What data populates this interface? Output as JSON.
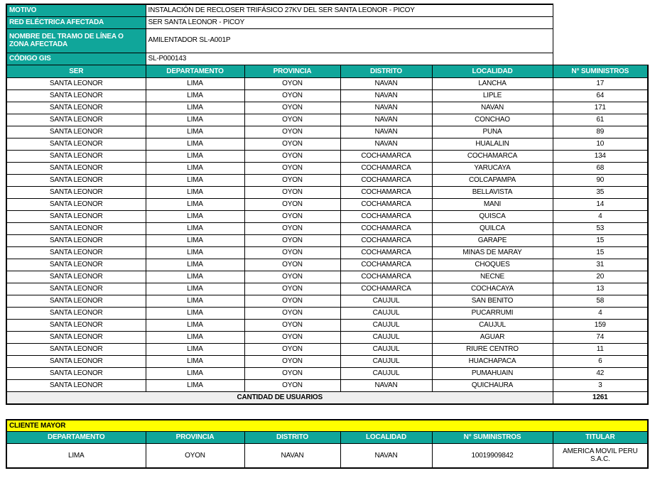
{
  "colors": {
    "header_teal": "#10a69a",
    "cliente_mayor_yellow": "#ffff00",
    "total_row_gray": "#efefef",
    "border_black": "#000000"
  },
  "info": {
    "rows": [
      {
        "label": "MOTIVO",
        "value": "INSTALACIÓN DE RECLOSER TRIFÁSICO 27KV DEL SER SANTA LEONOR - PICOY"
      },
      {
        "label": "RED ELÉCTRICA AFECTADA",
        "value": "SER SANTA LEONOR - PICOY"
      },
      {
        "label": "NOMBRE DEL TRAMO DE LÍNEA O ZONA AFECTADA",
        "value": "AMILENTADOR SL-A001P"
      },
      {
        "label": "CÓDIGO GIS",
        "value": "SL-P000143"
      }
    ]
  },
  "main_table": {
    "headers": [
      "SER",
      "DEPARTAMENTO",
      "PROVINCIA",
      "DISTRITO",
      "LOCALIDAD",
      "N° SUMINISTROS"
    ],
    "rows": [
      [
        "SANTA LEONOR",
        "LIMA",
        "OYON",
        "NAVAN",
        "LANCHA",
        "17"
      ],
      [
        "SANTA LEONOR",
        "LIMA",
        "OYON",
        "NAVAN",
        "LIPLE",
        "64"
      ],
      [
        "SANTA LEONOR",
        "LIMA",
        "OYON",
        "NAVAN",
        "NAVAN",
        "171"
      ],
      [
        "SANTA LEONOR",
        "LIMA",
        "OYON",
        "NAVAN",
        "CONCHAO",
        "61"
      ],
      [
        "SANTA LEONOR",
        "LIMA",
        "OYON",
        "NAVAN",
        "PUNA",
        "89"
      ],
      [
        "SANTA LEONOR",
        "LIMA",
        "OYON",
        "NAVAN",
        "HUALALIN",
        "10"
      ],
      [
        "SANTA LEONOR",
        "LIMA",
        "OYON",
        "COCHAMARCA",
        "COCHAMARCA",
        "134"
      ],
      [
        "SANTA LEONOR",
        "LIMA",
        "OYON",
        "COCHAMARCA",
        "YARUCAYA",
        "68"
      ],
      [
        "SANTA LEONOR",
        "LIMA",
        "OYON",
        "COCHAMARCA",
        "COLCAPAMPA",
        "90"
      ],
      [
        "SANTA LEONOR",
        "LIMA",
        "OYON",
        "COCHAMARCA",
        "BELLAVISTA",
        "35"
      ],
      [
        "SANTA LEONOR",
        "LIMA",
        "OYON",
        "COCHAMARCA",
        "MANI",
        "14"
      ],
      [
        "SANTA LEONOR",
        "LIMA",
        "OYON",
        "COCHAMARCA",
        "QUISCA",
        "4"
      ],
      [
        "SANTA LEONOR",
        "LIMA",
        "OYON",
        "COCHAMARCA",
        "QUILCA",
        "53"
      ],
      [
        "SANTA LEONOR",
        "LIMA",
        "OYON",
        "COCHAMARCA",
        "GARAPE",
        "15"
      ],
      [
        "SANTA LEONOR",
        "LIMA",
        "OYON",
        "COCHAMARCA",
        "MINAS DE MARAY",
        "15"
      ],
      [
        "SANTA LEONOR",
        "LIMA",
        "OYON",
        "COCHAMARCA",
        "CHOQUES",
        "31"
      ],
      [
        "SANTA LEONOR",
        "LIMA",
        "OYON",
        "COCHAMARCA",
        "NECNE",
        "20"
      ],
      [
        "SANTA LEONOR",
        "LIMA",
        "OYON",
        "COCHAMARCA",
        "COCHACAYA",
        "13"
      ],
      [
        "SANTA LEONOR",
        "LIMA",
        "OYON",
        "CAUJUL",
        "SAN BENITO",
        "58"
      ],
      [
        "SANTA LEONOR",
        "LIMA",
        "OYON",
        "CAUJUL",
        "PUCARRUMI",
        "4"
      ],
      [
        "SANTA LEONOR",
        "LIMA",
        "OYON",
        "CAUJUL",
        "CAUJUL",
        "159"
      ],
      [
        "SANTA LEONOR",
        "LIMA",
        "OYON",
        "CAUJUL",
        "AGUAR",
        "74"
      ],
      [
        "SANTA LEONOR",
        "LIMA",
        "OYON",
        "CAUJUL",
        "RIURE CENTRO",
        "11"
      ],
      [
        "SANTA LEONOR",
        "LIMA",
        "OYON",
        "CAUJUL",
        "HUACHAPACA",
        "6"
      ],
      [
        "SANTA LEONOR",
        "LIMA",
        "OYON",
        "CAUJUL",
        "PUMAHUAIN",
        "42"
      ],
      [
        "SANTA LEONOR",
        "LIMA",
        "OYON",
        "NAVAN",
        "QUICHAURA",
        "3"
      ]
    ],
    "total_label": "CANTIDAD DE USUARIOS",
    "total_value": "1261"
  },
  "cliente_mayor": {
    "title": "CLIENTE MAYOR",
    "headers": [
      "DEPARTAMENTO",
      "PROVINCIA",
      "DISTRITO",
      "LOCALIDAD",
      "N° SUMINISTROS",
      "TITULAR"
    ],
    "rows": [
      [
        "LIMA",
        "OYON",
        "NAVAN",
        "NAVAN",
        "10019909842",
        "AMERICA MOVIL PERU S.A.C."
      ]
    ]
  }
}
